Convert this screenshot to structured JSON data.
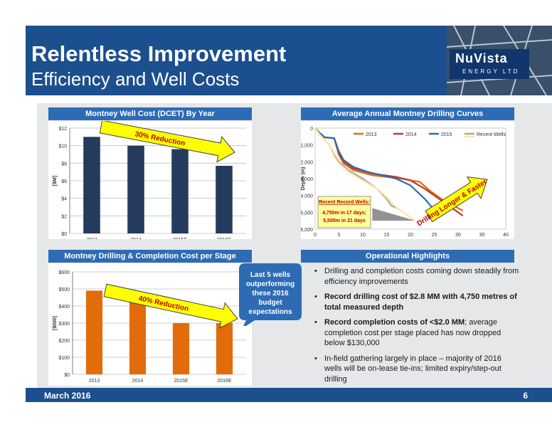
{
  "header": {
    "title": "Relentless Improvement",
    "subtitle": "Efficiency and Well Costs",
    "logo_text": "NuVista",
    "logo_subtext": "ENERGY LTD"
  },
  "footer": {
    "date": "March 2016",
    "page": "6"
  },
  "colors": {
    "header_blue": "#1b4f8e",
    "panel_blue": "#2e6bb5",
    "navy_bar": "#243b5e",
    "orange_bar": "#e36c0a",
    "arrow_yellow": "#ffff00"
  },
  "panels": {
    "well_cost": {
      "title": "Montney Well Cost (DCET) By Year",
      "arrow_label": "30% Reduction"
    },
    "drilling_curves": {
      "title": "Average Annual Montney Drilling Curves",
      "arrow_label": "Drilling Longer & Faster",
      "record_box": {
        "heading": "Recent Record Wells:",
        "line1": "4,750m in 17 days;",
        "line2": "5,500m in 21 days"
      }
    },
    "stage_cost": {
      "title": "Montney Drilling & Completion Cost per Stage",
      "arrow_label": "40% Reduction",
      "callout": [
        "Last 5 wells",
        "outperforming",
        "these 2016",
        "budget",
        "expectations"
      ]
    },
    "highlights": {
      "title": "Operational Highlights",
      "bullets": [
        [
          "Drilling and completion costs coming down steadily from efficiency improvements",
          ""
        ],
        [
          "Record drilling cost of $2.8 MM with 4,750 metres of total measured depth",
          ""
        ],
        [
          "Record completion costs of <$2.0 MM",
          "; average completion cost per stage placed has now dropped below $130,000"
        ],
        [
          "In-field gathering largely in place – majority of 2016 wells will be on-lease tie-ins; limited expiry/step-out drilling",
          ""
        ]
      ]
    }
  },
  "chart_data": [
    {
      "type": "bar",
      "title": "Montney Well Cost (DCET) By Year",
      "categories": [
        "2013",
        "2014",
        "2015E",
        "2016E"
      ],
      "values": [
        11.0,
        10.0,
        9.6,
        7.7
      ],
      "ylabel": "[$M]",
      "ylim": [
        0,
        12
      ],
      "yticks": [
        "$0",
        "$2",
        "$4",
        "$6",
        "$8",
        "$10",
        "$12"
      ],
      "grid": true,
      "color": "#243b5e"
    },
    {
      "type": "line",
      "title": "Average Annual Montney Drilling Curves",
      "xlabel": "Days",
      "ylabel": "Depth (m)",
      "xlim": [
        0,
        40
      ],
      "ylim": [
        6000,
        0
      ],
      "xticks": [
        "0",
        "5",
        "10",
        "15",
        "20",
        "25",
        "30",
        "35",
        "40"
      ],
      "yticks": [
        "0",
        "1,000",
        "2,000",
        "3,000",
        "4,000",
        "5,000",
        "6,000"
      ],
      "legend_position": "top",
      "series": [
        {
          "name": "2013",
          "color": "#e36c0a",
          "points": [
            [
              0,
              0
            ],
            [
              1,
              300
            ],
            [
              2,
              550
            ],
            [
              4,
              600
            ],
            [
              5,
              1600
            ],
            [
              6,
              2100
            ],
            [
              8,
              2500
            ],
            [
              12,
              2800
            ],
            [
              18,
              3000
            ],
            [
              22,
              3200
            ],
            [
              24,
              3700
            ],
            [
              27,
              4300
            ],
            [
              31,
              4900
            ]
          ]
        },
        {
          "name": "2014",
          "color": "#c0392b",
          "points": [
            [
              0,
              0
            ],
            [
              1,
              300
            ],
            [
              2,
              550
            ],
            [
              4,
              600
            ],
            [
              5,
              1500
            ],
            [
              6,
              2000
            ],
            [
              8,
              2400
            ],
            [
              12,
              2700
            ],
            [
              17,
              2900
            ],
            [
              20,
              3100
            ],
            [
              23,
              3600
            ],
            [
              27,
              4400
            ],
            [
              31,
              5200
            ]
          ]
        },
        {
          "name": "2015",
          "color": "#2e6bb5",
          "points": [
            [
              0,
              0
            ],
            [
              1,
              300
            ],
            [
              2,
              550
            ],
            [
              4,
              600
            ],
            [
              5,
              1400
            ],
            [
              6,
              1900
            ],
            [
              8,
              2300
            ],
            [
              11,
              2600
            ],
            [
              14,
              2800
            ],
            [
              17,
              3000
            ],
            [
              20,
              3400
            ],
            [
              23,
              4200
            ],
            [
              26,
              5200
            ]
          ]
        },
        {
          "name": "Recent Wells",
          "color": "#a6a6a6",
          "points": [
            [
              0,
              0
            ],
            [
              1,
              400
            ],
            [
              2,
              700
            ],
            [
              3,
              1000
            ],
            [
              4,
              1600
            ],
            [
              5,
              2000
            ],
            [
              7,
              2500
            ],
            [
              10,
              3000
            ],
            [
              13,
              3600
            ],
            [
              15,
              4200
            ],
            [
              16,
              4600
            ],
            [
              17,
              4750
            ]
          ]
        },
        {
          "name": "",
          "color": "#ffe699",
          "points": [
            [
              0,
              0
            ],
            [
              1,
              400
            ],
            [
              2,
              700
            ],
            [
              3,
              1000
            ],
            [
              4,
              1700
            ],
            [
              5,
              2100
            ],
            [
              7,
              2600
            ],
            [
              10,
              3100
            ],
            [
              13,
              3600
            ],
            [
              15,
              4100
            ],
            [
              17,
              4700
            ],
            [
              19,
              5100
            ],
            [
              21,
              5500
            ]
          ]
        }
      ]
    },
    {
      "type": "bar",
      "title": "Montney Drilling & Completion Cost per Stage",
      "categories": [
        "2013",
        "2014",
        "2015E",
        "2016E"
      ],
      "values": [
        490,
        430,
        300,
        300
      ],
      "ylabel": "[$000]",
      "ylim": [
        0,
        600
      ],
      "yticks": [
        "$0",
        "$100",
        "$200",
        "$300",
        "$400",
        "$500",
        "$600"
      ],
      "grid": true,
      "color": "#e36c0a"
    }
  ]
}
